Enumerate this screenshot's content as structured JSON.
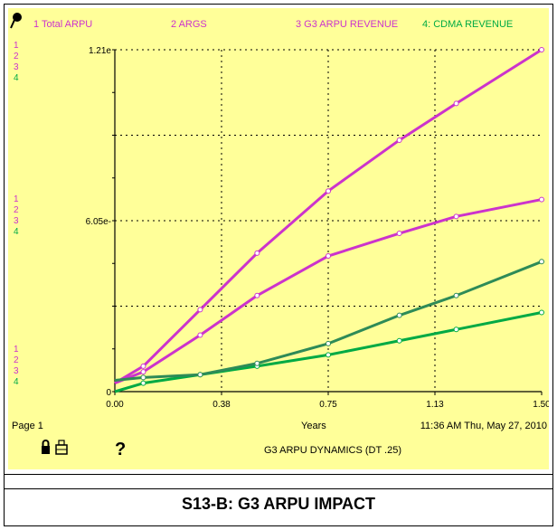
{
  "chart_data": {
    "type": "line",
    "series": [
      {
        "name": "Total ARPU",
        "number": "1",
        "color": "#cc33cc",
        "x": [
          0,
          0.1,
          0.3,
          0.5,
          0.75,
          1.0,
          1.2,
          1.5
        ],
        "values": [
          0.03,
          0.09,
          0.29,
          0.49,
          0.71,
          0.89,
          1.02,
          1.21
        ]
      },
      {
        "name": "ARGS",
        "number": "2",
        "color": "#cc33cc",
        "values": []
      },
      {
        "name": "G3 ARPU REVENUE",
        "number": "3",
        "color": "#cc33cc",
        "x": [
          0,
          0.1,
          0.3,
          0.5,
          0.75,
          1.0,
          1.2,
          1.5
        ],
        "values": [
          0.03,
          0.07,
          0.2,
          0.34,
          0.48,
          0.56,
          0.62,
          0.68
        ]
      },
      {
        "name": "4: CDMA REVENUE",
        "number": "4",
        "color": "#00aa44",
        "x": [
          0,
          0.1,
          0.3,
          0.5,
          0.75,
          1.0,
          1.2,
          1.5
        ],
        "values": [
          0.0,
          0.03,
          0.06,
          0.09,
          0.13,
          0.18,
          0.22,
          0.28
        ]
      },
      {
        "name": "",
        "number": "",
        "color": "#2e8b57",
        "x": [
          0,
          0.1,
          0.3,
          0.5,
          0.75,
          1.0,
          1.2,
          1.5
        ],
        "values": [
          0.04,
          0.05,
          0.06,
          0.1,
          0.17,
          0.27,
          0.34,
          0.46
        ]
      }
    ],
    "xlabel": "Years",
    "ylabel": "",
    "xlim": [
      0,
      1.5
    ],
    "ylim": [
      0,
      1.21
    ],
    "x_ticks": [
      "0.00",
      "0.38",
      "0.75",
      "1.13",
      "1.50"
    ],
    "x_tick_values": [
      0,
      0.375,
      0.75,
      1.125,
      1.5
    ],
    "y_ticks": [
      "1.21e",
      "6.05e-",
      "0"
    ],
    "y_tick_values": [
      1.21,
      0.605,
      0
    ],
    "grid": true
  },
  "header": {
    "legend_labels": [
      "1 Total ARPU",
      "2 ARGS",
      "3 G3 ARPU REVENUE",
      "4: CDMA REVENUE"
    ],
    "scale_numbers": [
      "1",
      "2",
      "3",
      "4"
    ]
  },
  "footer": {
    "page_label": "Page 1",
    "years_label": "Years",
    "timestamp": "11:36 AM Thu, May 27, 2010",
    "graph_title": "G3 ARPU DYNAMICS (DT .25)",
    "help_symbol": "?"
  },
  "caption": "S13-B: G3 ARPU IMPACT"
}
